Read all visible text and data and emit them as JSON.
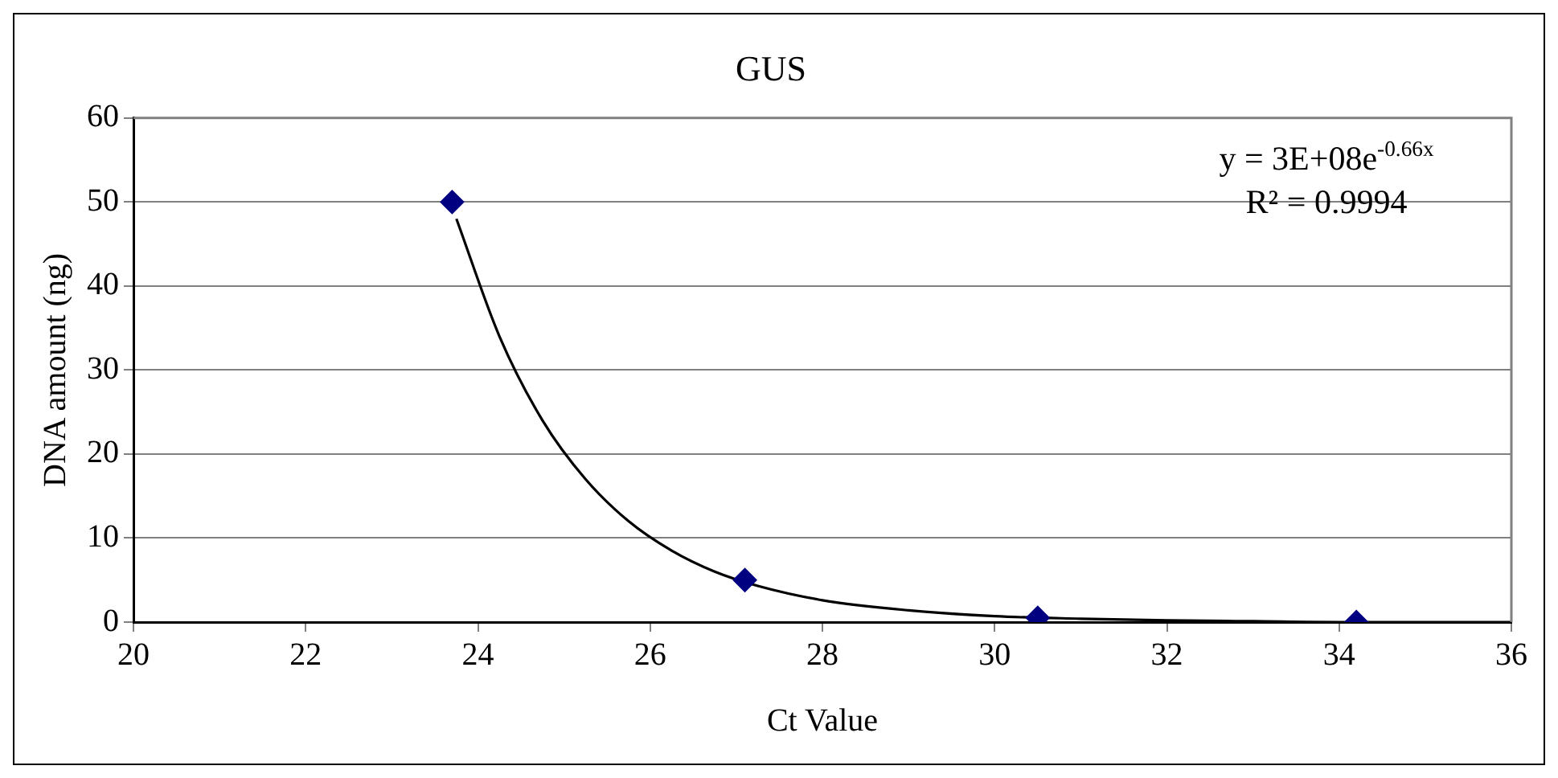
{
  "chart_data": {
    "type": "scatter",
    "title": "GUS",
    "xlabel": "Ct Value",
    "ylabel": "DNA amount (ng)",
    "series": [
      {
        "type": "scatter",
        "color": "#000080",
        "x": [
          23.7,
          27.1,
          30.5,
          34.2
        ],
        "values": [
          50,
          5,
          0.5,
          0
        ],
        "marker": "diamond"
      },
      {
        "type": "line",
        "color": "#000000",
        "x": [
          23.75,
          24.25,
          24.75,
          25.25,
          25.75,
          26.25,
          26.75,
          27.25,
          28,
          29,
          30,
          31,
          32,
          33,
          34,
          35,
          36
        ],
        "values": [
          48,
          34,
          24,
          17,
          12,
          8.5,
          6,
          4.3,
          2.6,
          1.4,
          0.7,
          0.4,
          0.2,
          0.1,
          0,
          0,
          0
        ],
        "marker": "none",
        "line_style": "solid"
      }
    ],
    "xlim": [
      20,
      36
    ],
    "xticks": [
      20,
      22,
      24,
      26,
      28,
      30,
      32,
      34,
      36
    ],
    "ylim": [
      0,
      60
    ],
    "yticks": [
      0,
      10,
      20,
      30,
      40,
      50,
      60
    ],
    "grid": "y",
    "legend": false,
    "annotations": [
      "y = 3E+08e$^{-0.66x}$",
      "R² = 0.9994"
    ]
  }
}
